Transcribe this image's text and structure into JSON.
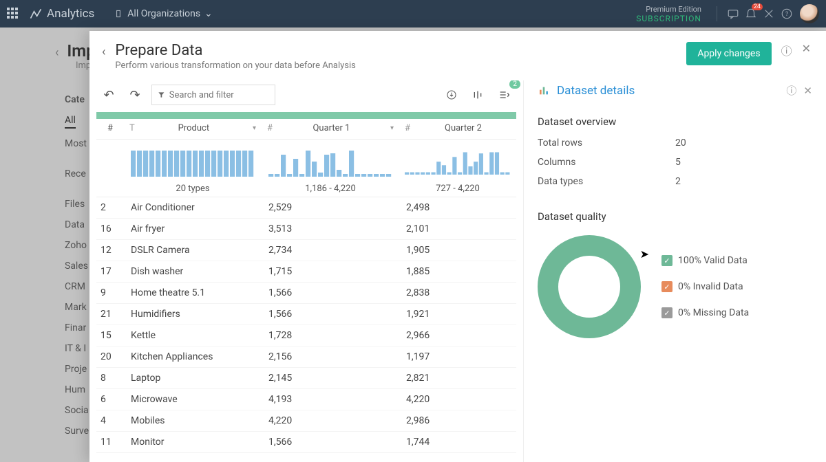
{
  "topnav": {
    "brand": "Analytics",
    "org_label": "All Organizations",
    "premium_line1": "Premium Edition",
    "premium_line2": "SUBSCRIPTION",
    "notification_count": "24"
  },
  "bg": {
    "title": "Imp",
    "subtitle": "Impor",
    "cat_header": "Cate",
    "categories": [
      "All",
      "Most",
      "Rece",
      "Files",
      "Data",
      "Zoho",
      "Sales",
      "CRM",
      "Mark",
      "Finar",
      "IT & I",
      "Proje",
      "Hum",
      "Socia",
      "Surve"
    ]
  },
  "panel": {
    "title": "Prepare Data",
    "subtitle": "Perform various transformation on your data before Analysis",
    "apply_label": "Apply changes",
    "search_placeholder": "Search and filter",
    "badge_count": "2"
  },
  "table": {
    "columns": {
      "idx": "#",
      "product": {
        "type": "T",
        "label": "Product"
      },
      "q1": {
        "type": "#",
        "label": "Quarter 1"
      },
      "q2": {
        "type": "#",
        "label": "Quarter 2"
      }
    },
    "hist": {
      "product": {
        "range": "20 types",
        "bars": [
          38,
          38,
          38,
          38,
          38,
          38,
          38,
          38,
          38,
          38,
          38,
          38,
          38,
          38,
          38,
          38,
          38,
          38,
          38,
          38
        ]
      },
      "q1": {
        "range": "1,186 - 4,220",
        "bars": [
          4,
          4,
          32,
          4,
          26,
          4,
          38,
          22,
          6,
          32,
          34,
          10,
          4,
          38,
          4,
          4,
          4,
          4,
          4,
          4
        ]
      },
      "q2": {
        "range": "727 - 4,220",
        "bars": [
          4,
          4,
          4,
          4,
          4,
          4,
          22,
          16,
          4,
          30,
          4,
          38,
          14,
          22,
          36,
          4,
          38,
          38,
          4,
          4
        ]
      }
    },
    "rows": [
      {
        "idx": "2",
        "product": "Air Conditioner",
        "q1": "2,529",
        "q2": "2,498"
      },
      {
        "idx": "16",
        "product": "Air fryer",
        "q1": "3,513",
        "q2": "2,101"
      },
      {
        "idx": "12",
        "product": "DSLR Camera",
        "q1": "2,734",
        "q2": "1,905"
      },
      {
        "idx": "17",
        "product": "Dish washer",
        "q1": "1,715",
        "q2": "1,885"
      },
      {
        "idx": "9",
        "product": "Home theatre 5.1",
        "q1": "1,566",
        "q2": "2,838"
      },
      {
        "idx": "21",
        "product": "Humidifiers",
        "q1": "1,566",
        "q2": "1,921"
      },
      {
        "idx": "15",
        "product": "Kettle",
        "q1": "1,728",
        "q2": "2,966"
      },
      {
        "idx": "20",
        "product": "Kitchen Appliances",
        "q1": "2,156",
        "q2": "1,197"
      },
      {
        "idx": "8",
        "product": "Laptop",
        "q1": "2,145",
        "q2": "2,821"
      },
      {
        "idx": "6",
        "product": "Microwave",
        "q1": "4,193",
        "q2": "4,220"
      },
      {
        "idx": "4",
        "product": "Mobiles",
        "q1": "4,220",
        "q2": "2,986"
      },
      {
        "idx": "11",
        "product": "Monitor",
        "q1": "1,566",
        "q2": "1,744"
      }
    ]
  },
  "details": {
    "title": "Dataset details",
    "overview_label": "Dataset overview",
    "total_rows_label": "Total rows",
    "total_rows": "20",
    "columns_label": "Columns",
    "columns": "5",
    "dtypes_label": "Data types",
    "dtypes": "2",
    "quality_label": "Dataset quality",
    "donut_color": "#6eb897",
    "legend": {
      "valid": {
        "label": "100% Valid Data",
        "color": "#6eb897"
      },
      "invalid": {
        "label": "0% Invalid Data",
        "color": "#e78b5c"
      },
      "missing": {
        "label": "0% Missing Data",
        "color": "#9a9a9a"
      }
    }
  },
  "colors": {
    "accent": "#20b39a",
    "bar": "#8bbfe4"
  }
}
